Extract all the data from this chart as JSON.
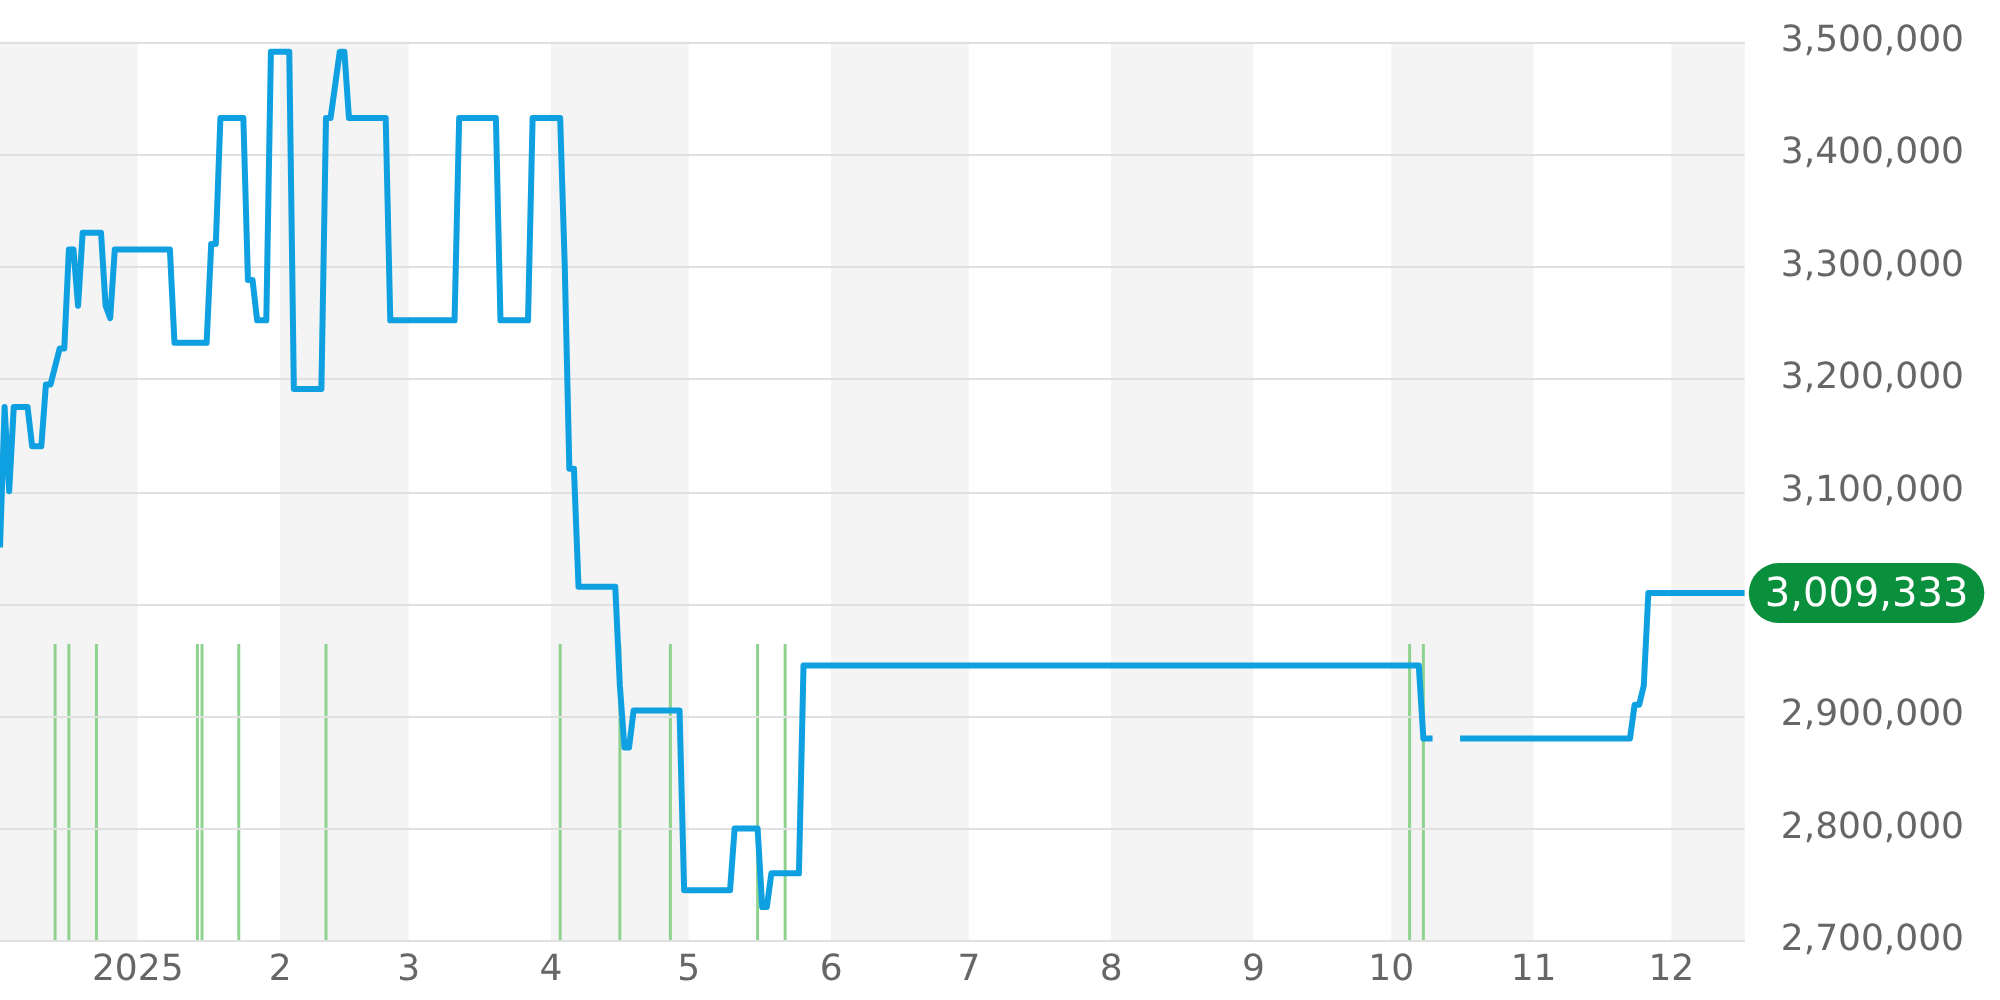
{
  "chart_data": {
    "type": "line",
    "xlim": [
      "2024-12-02",
      "2025-12-17"
    ],
    "xticks": [
      {
        "value": "2025-01-01",
        "label": "2025"
      },
      {
        "value": "2025-02-01",
        "label": "2"
      },
      {
        "value": "2025-03-01",
        "label": "3"
      },
      {
        "value": "2025-04-01",
        "label": "4"
      },
      {
        "value": "2025-05-01",
        "label": "5"
      },
      {
        "value": "2025-06-01",
        "label": "6"
      },
      {
        "value": "2025-07-01",
        "label": "7"
      },
      {
        "value": "2025-08-01",
        "label": "8"
      },
      {
        "value": "2025-09-01",
        "label": "9"
      },
      {
        "value": "2025-10-01",
        "label": "10"
      },
      {
        "value": "2025-11-01",
        "label": "11"
      },
      {
        "value": "2025-12-01",
        "label": "12"
      }
    ],
    "ylim": [
      2700000,
      3500000
    ],
    "yticks": [
      {
        "value": 2700000,
        "label": "2,700,000"
      },
      {
        "value": 2800000,
        "label": "2,800,000"
      },
      {
        "value": 2900000,
        "label": "2,900,000"
      },
      {
        "value": 3000000,
        "label": null
      },
      {
        "value": 3100000,
        "label": "3,100,000"
      },
      {
        "value": 3200000,
        "label": "3,200,000"
      },
      {
        "value": 3300000,
        "label": "3,300,000"
      },
      {
        "value": 3400000,
        "label": "3,400,000"
      },
      {
        "value": 3500000,
        "label": "3,500,000"
      }
    ],
    "ref_lines": [
      {
        "axis": "x",
        "value": "2024-12-14",
        "color": "#8fd18f"
      },
      {
        "axis": "x",
        "value": "2024-12-17",
        "color": "#8fd18f"
      },
      {
        "axis": "x",
        "value": "2024-12-23",
        "color": "#8fd18f"
      },
      {
        "axis": "x",
        "value": "2025-01-14",
        "color": "#8fd18f"
      },
      {
        "axis": "x",
        "value": "2025-01-15",
        "color": "#8fd18f"
      },
      {
        "axis": "x",
        "value": "2025-01-23",
        "color": "#8fd18f"
      },
      {
        "axis": "x",
        "value": "2025-02-11",
        "color": "#8fd18f"
      },
      {
        "axis": "x",
        "value": "2025-04-03",
        "color": "#8fd18f"
      },
      {
        "axis": "x",
        "value": "2025-04-16",
        "color": "#8fd18f"
      },
      {
        "axis": "x",
        "value": "2025-04-27",
        "color": "#8fd18f"
      },
      {
        "axis": "x",
        "value": "2025-05-16",
        "color": "#8fd18f"
      },
      {
        "axis": "x",
        "value": "2025-05-22",
        "color": "#8fd18f"
      },
      {
        "axis": "x",
        "value": "2025-10-05",
        "color": "#8fd18f"
      },
      {
        "axis": "x",
        "value": "2025-10-08",
        "color": "#8fd18f"
      }
    ],
    "grid": "y",
    "legend": false,
    "marker": "none",
    "line_style": "solid",
    "bands": [
      {
        "axis": "x",
        "from": "2024-12-02",
        "to": "2025-01-01",
        "color": "#f4f4f4"
      },
      {
        "axis": "x",
        "from": "2025-02-01",
        "to": "2025-03-01",
        "color": "#f4f4f4"
      },
      {
        "axis": "x",
        "from": "2025-04-01",
        "to": "2025-05-01",
        "color": "#f4f4f4"
      },
      {
        "axis": "x",
        "from": "2025-06-01",
        "to": "2025-07-01",
        "color": "#f4f4f4"
      },
      {
        "axis": "x",
        "from": "2025-08-01",
        "to": "2025-09-01",
        "color": "#f4f4f4"
      },
      {
        "axis": "x",
        "from": "2025-10-01",
        "to": "2025-11-01",
        "color": "#f4f4f4"
      },
      {
        "axis": "x",
        "from": "2025-12-01",
        "to": "2025-12-17",
        "color": "#f4f4f4"
      }
    ],
    "annotations": [
      {
        "text": "3,009,333",
        "x": "2025-12-17",
        "y": 3009333
      }
    ],
    "series": [
      {
        "color": "#0ea0e0",
        "x": [
          "2024-12-02",
          "2024-12-03",
          "2024-12-04",
          "2024-12-05",
          "2024-12-08",
          "2024-12-09",
          "2024-12-11",
          "2024-12-12",
          "2024-12-13",
          "2024-12-15",
          "2024-12-16",
          "2024-12-17",
          "2024-12-18",
          "2024-12-19",
          "2024-12-20",
          "2024-12-24",
          "2024-12-25",
          "2024-12-26",
          "2024-12-27",
          "2025-01-08",
          "2025-01-09",
          "2025-01-16",
          "2025-01-17",
          "2025-01-18",
          "2025-01-19",
          "2025-01-24",
          "2025-01-25",
          "2025-01-26",
          "2025-01-27",
          "2025-01-29",
          "2025-01-30",
          "2025-02-03",
          "2025-02-04",
          "2025-02-10",
          "2025-02-11",
          "2025-02-12",
          "2025-02-14",
          "2025-02-15",
          "2025-02-16",
          "2025-02-24",
          "2025-02-25",
          "2025-03-11",
          "2025-03-12",
          "2025-03-20",
          "2025-03-21",
          "2025-03-27",
          "2025-03-28",
          "2025-04-03",
          "2025-04-04",
          "2025-04-05",
          "2025-04-06",
          "2025-04-07",
          "2025-04-15",
          "2025-04-16",
          "2025-04-17",
          "2025-04-18",
          "2025-04-19",
          "2025-04-29",
          "2025-04-30",
          "2025-05-10",
          "2025-05-11",
          "2025-05-16",
          "2025-05-17",
          "2025-05-18",
          "2025-05-19",
          "2025-05-25",
          "2025-05-26",
          "2025-10-07",
          "2025-10-08",
          "2025-10-10",
          "2025-10-15",
          "2025-10-16",
          "2025-11-22",
          "2025-11-23",
          "2025-11-24",
          "2025-11-25",
          "2025-11-26",
          "2025-12-17"
        ],
        "values": [
          3050000,
          3175000,
          3100000,
          3175000,
          3175000,
          3140000,
          3140000,
          3195000,
          3195000,
          3227000,
          3227000,
          3315000,
          3315000,
          3265000,
          3330000,
          3330000,
          3265000,
          3254000,
          3315000,
          3315000,
          3232000,
          3232000,
          3320000,
          3320000,
          3432000,
          3432000,
          3288000,
          3288000,
          3252000,
          3252000,
          3491000,
          3491000,
          3191000,
          3191000,
          3432000,
          3432000,
          3491000,
          3491000,
          3432000,
          3432000,
          3252000,
          3252000,
          3432000,
          3432000,
          3252000,
          3252000,
          3432000,
          3432000,
          3300000,
          3120000,
          3120000,
          3015000,
          3015000,
          2927000,
          2872000,
          2872000,
          2905000,
          2905000,
          2745000,
          2745000,
          2800000,
          2800000,
          2730000,
          2730000,
          2760000,
          2760000,
          2945000,
          2945000,
          2880000,
          2880000,
          null,
          2880000,
          2880000,
          2910000,
          2910000,
          2927000,
          3009333,
          3009333
        ]
      }
    ]
  }
}
